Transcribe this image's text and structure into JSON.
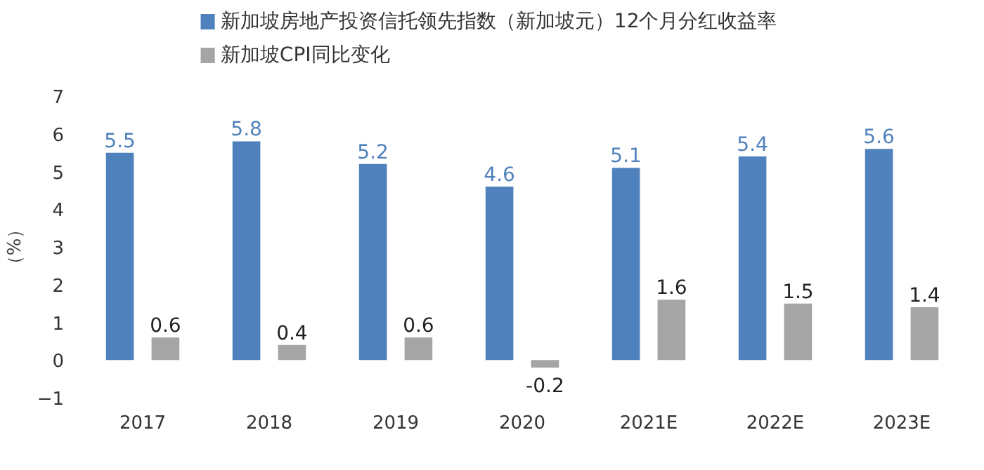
{
  "chart_data": {
    "type": "bar",
    "ylabel": "（%）",
    "categories": [
      "2017",
      "2018",
      "2019",
      "2020",
      "2021E",
      "2022E",
      "2023E"
    ],
    "series": [
      {
        "name": "新加坡房地产投资信托领先指数（新加坡元）12个月分红收益率",
        "color": "#4f81bd",
        "values": [
          5.5,
          5.8,
          5.2,
          4.6,
          5.1,
          5.4,
          5.6
        ]
      },
      {
        "name": "新加坡CPI同比变化",
        "color": "#a5a5a5",
        "values": [
          0.6,
          0.4,
          0.6,
          -0.2,
          1.6,
          1.5,
          1.4
        ]
      }
    ],
    "ylim": [
      -1,
      7
    ],
    "yticks": [
      -1,
      0,
      1,
      2,
      3,
      4,
      5,
      6,
      7
    ],
    "data_labels": true,
    "grid": false,
    "legend": "top left"
  }
}
